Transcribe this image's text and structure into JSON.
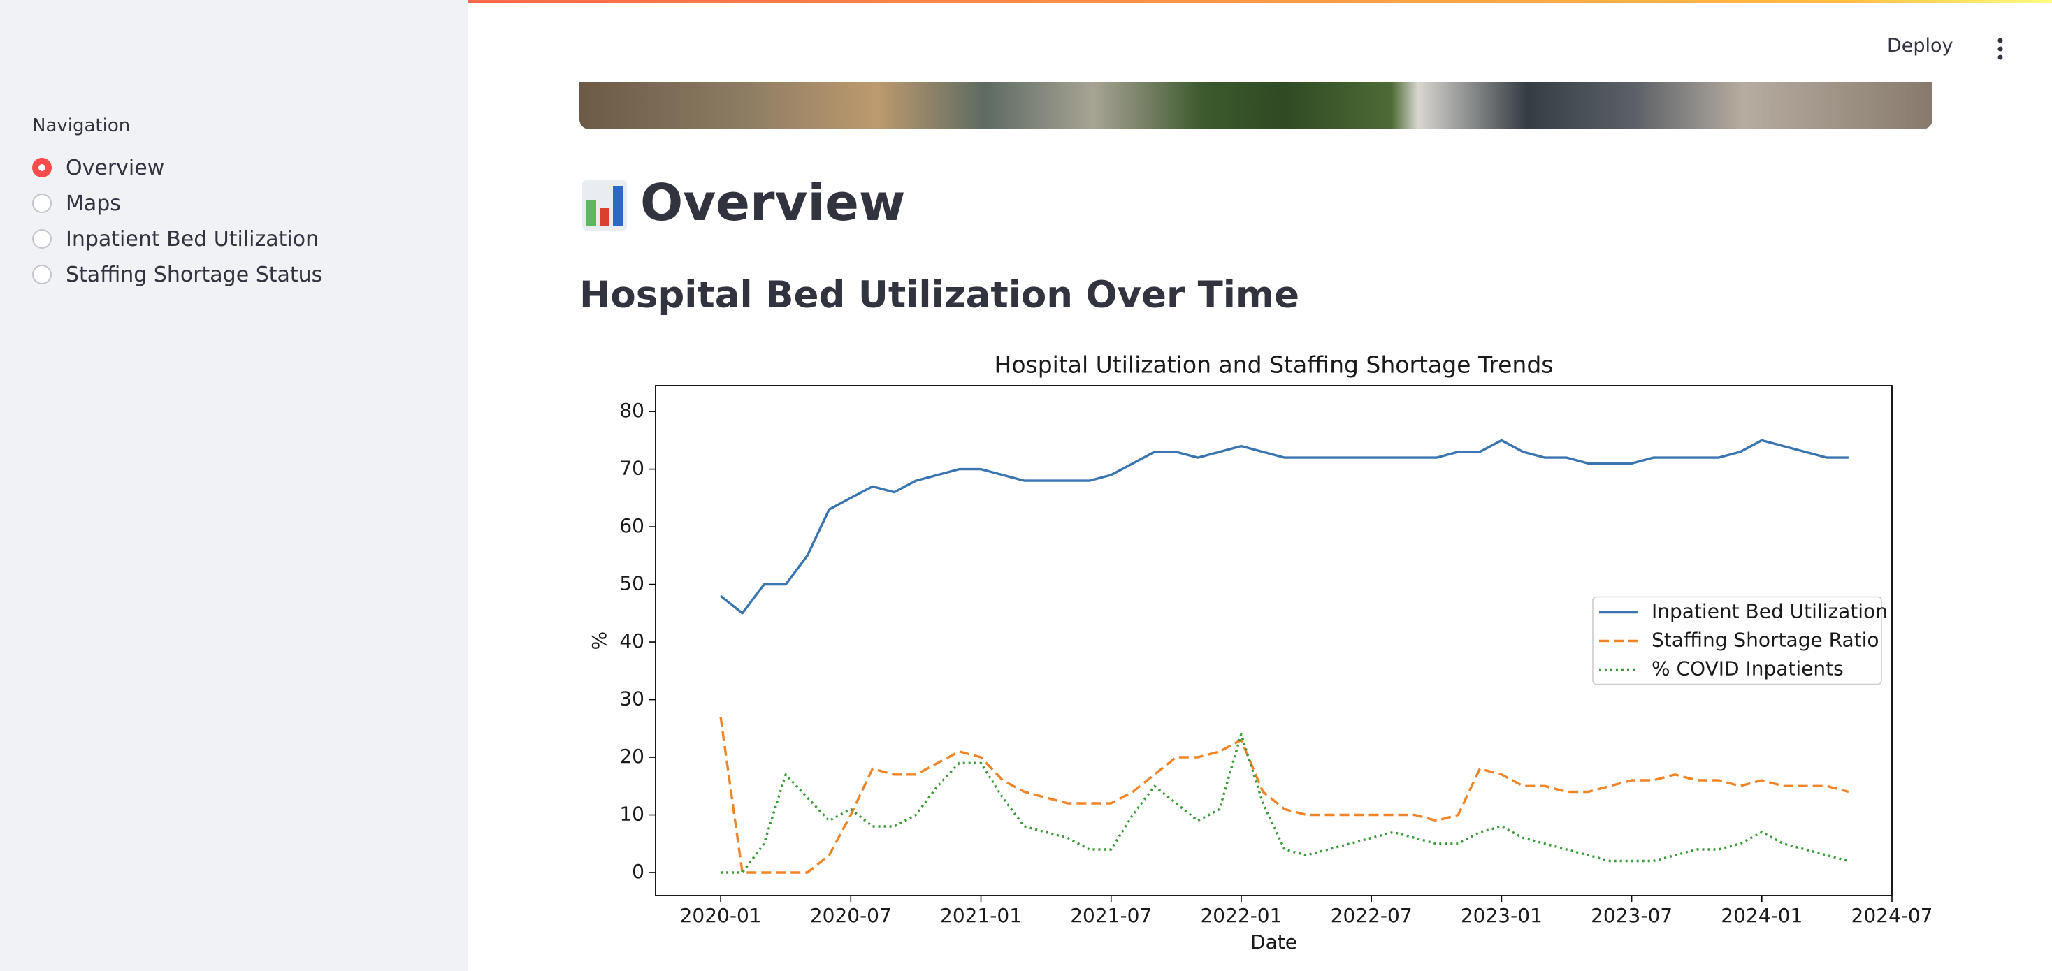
{
  "sidebar": {
    "label": "Navigation",
    "options": [
      "Overview",
      "Maps",
      "Inpatient Bed Utilization",
      "Staffing Shortage Status"
    ],
    "selected": 0
  },
  "header": {
    "deploy": "Deploy"
  },
  "page": {
    "title": "Overview",
    "subheader": "Hospital Bed Utilization Over Time"
  },
  "chart_data": {
    "type": "line",
    "title": "Hospital Utilization and Staffing Shortage Trends",
    "x_label": "Date",
    "y_label": "%",
    "x": [
      "2020-01",
      "2020-02",
      "2020-03",
      "2020-04",
      "2020-05",
      "2020-06",
      "2020-07",
      "2020-08",
      "2020-09",
      "2020-10",
      "2020-11",
      "2020-12",
      "2021-01",
      "2021-02",
      "2021-03",
      "2021-04",
      "2021-05",
      "2021-06",
      "2021-07",
      "2021-08",
      "2021-09",
      "2021-10",
      "2021-11",
      "2021-12",
      "2022-01",
      "2022-02",
      "2022-03",
      "2022-04",
      "2022-05",
      "2022-06",
      "2022-07",
      "2022-08",
      "2022-09",
      "2022-10",
      "2022-11",
      "2022-12",
      "2023-01",
      "2023-02",
      "2023-03",
      "2023-04",
      "2023-05",
      "2023-06",
      "2023-07",
      "2023-08",
      "2023-09",
      "2023-10",
      "2023-11",
      "2023-12",
      "2024-01",
      "2024-02",
      "2024-03",
      "2024-04",
      "2024-05"
    ],
    "series": [
      {
        "name": "Inpatient Bed Utilization",
        "color": "#3a75b0",
        "linestyle": "solid",
        "values": [
          48,
          45,
          50,
          50,
          55,
          63,
          65,
          67,
          66,
          68,
          69,
          70,
          70,
          69,
          68,
          68,
          68,
          68,
          69,
          71,
          73,
          73,
          72,
          73,
          74,
          73,
          72,
          72,
          72,
          72,
          72,
          72,
          72,
          72,
          73,
          73,
          75,
          73,
          72,
          72,
          71,
          71,
          71,
          72,
          72,
          72,
          72,
          73,
          75,
          74,
          73,
          72,
          72
        ]
      },
      {
        "name": "Staffing Shortage Ratio",
        "color": "#f08428",
        "linestyle": "dashed",
        "values": [
          27,
          0,
          0,
          0,
          0,
          3,
          10,
          18,
          17,
          17,
          19,
          21,
          20,
          16,
          14,
          13,
          12,
          12,
          12,
          14,
          17,
          20,
          20,
          21,
          23,
          14,
          11,
          10,
          10,
          10,
          10,
          10,
          10,
          9,
          10,
          18,
          17,
          15,
          15,
          14,
          14,
          15,
          16,
          16,
          17,
          16,
          16,
          15,
          16,
          15,
          15,
          15,
          14
        ]
      },
      {
        "name": "% COVID Inpatients",
        "color": "#3a9a3a",
        "linestyle": "dotted",
        "values": [
          0,
          0,
          5,
          17,
          13,
          9,
          11,
          8,
          8,
          10,
          15,
          19,
          19,
          13,
          8,
          7,
          6,
          4,
          4,
          10,
          15,
          12,
          9,
          11,
          24,
          12,
          4,
          3,
          4,
          5,
          6,
          7,
          6,
          5,
          5,
          7,
          8,
          6,
          5,
          4,
          3,
          2,
          2,
          2,
          3,
          4,
          4,
          5,
          7,
          5,
          4,
          3,
          2
        ]
      }
    ],
    "xlim": [
      "2019-10",
      "2024-07"
    ],
    "xticks": [
      "2020-01",
      "2020-07",
      "2021-01",
      "2021-07",
      "2022-01",
      "2022-07",
      "2023-01",
      "2023-07",
      "2024-01",
      "2024-07"
    ],
    "ylim": [
      -4,
      84.5
    ],
    "yticks": [
      0,
      10,
      20,
      30,
      40,
      50,
      60,
      70,
      80
    ],
    "legend": "center right"
  }
}
